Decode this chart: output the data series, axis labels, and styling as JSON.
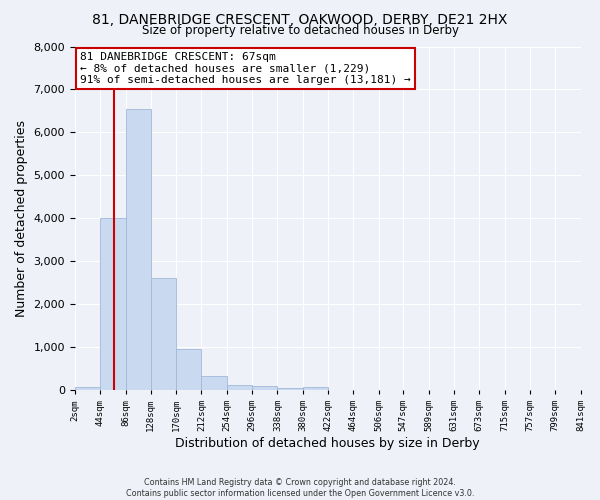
{
  "title": "81, DANEBRIDGE CRESCENT, OAKWOOD, DERBY, DE21 2HX",
  "subtitle": "Size of property relative to detached houses in Derby",
  "xlabel": "Distribution of detached houses by size in Derby",
  "ylabel": "Number of detached properties",
  "bin_edges": [
    2,
    44,
    86,
    128,
    170,
    212,
    254,
    296,
    338,
    380,
    422,
    464,
    506,
    547,
    589,
    631,
    673,
    715,
    757,
    799,
    841
  ],
  "bin_labels": [
    "2sqm",
    "44sqm",
    "86sqm",
    "128sqm",
    "170sqm",
    "212sqm",
    "254sqm",
    "296sqm",
    "338sqm",
    "380sqm",
    "422sqm",
    "464sqm",
    "506sqm",
    "547sqm",
    "589sqm",
    "631sqm",
    "673sqm",
    "715sqm",
    "757sqm",
    "799sqm",
    "841sqm"
  ],
  "counts": [
    75,
    4000,
    6550,
    2600,
    960,
    330,
    130,
    90,
    50,
    75,
    0,
    0,
    0,
    0,
    0,
    0,
    0,
    0,
    0,
    0
  ],
  "bar_color": "#c9d9f0",
  "bar_edge_color": "#a0b8d8",
  "property_line_x": 67,
  "property_line_color": "#cc0000",
  "annotation_title": "81 DANEBRIDGE CRESCENT: 67sqm",
  "annotation_line1": "← 8% of detached houses are smaller (1,229)",
  "annotation_line2": "91% of semi-detached houses are larger (13,181) →",
  "annotation_box_color": "#cc0000",
  "ylim": [
    0,
    8000
  ],
  "yticks": [
    0,
    1000,
    2000,
    3000,
    4000,
    5000,
    6000,
    7000,
    8000
  ],
  "background_color": "#eef1f8",
  "grid_color": "#ffffff",
  "footer_line1": "Contains HM Land Registry data © Crown copyright and database right 2024.",
  "footer_line2": "Contains public sector information licensed under the Open Government Licence v3.0."
}
